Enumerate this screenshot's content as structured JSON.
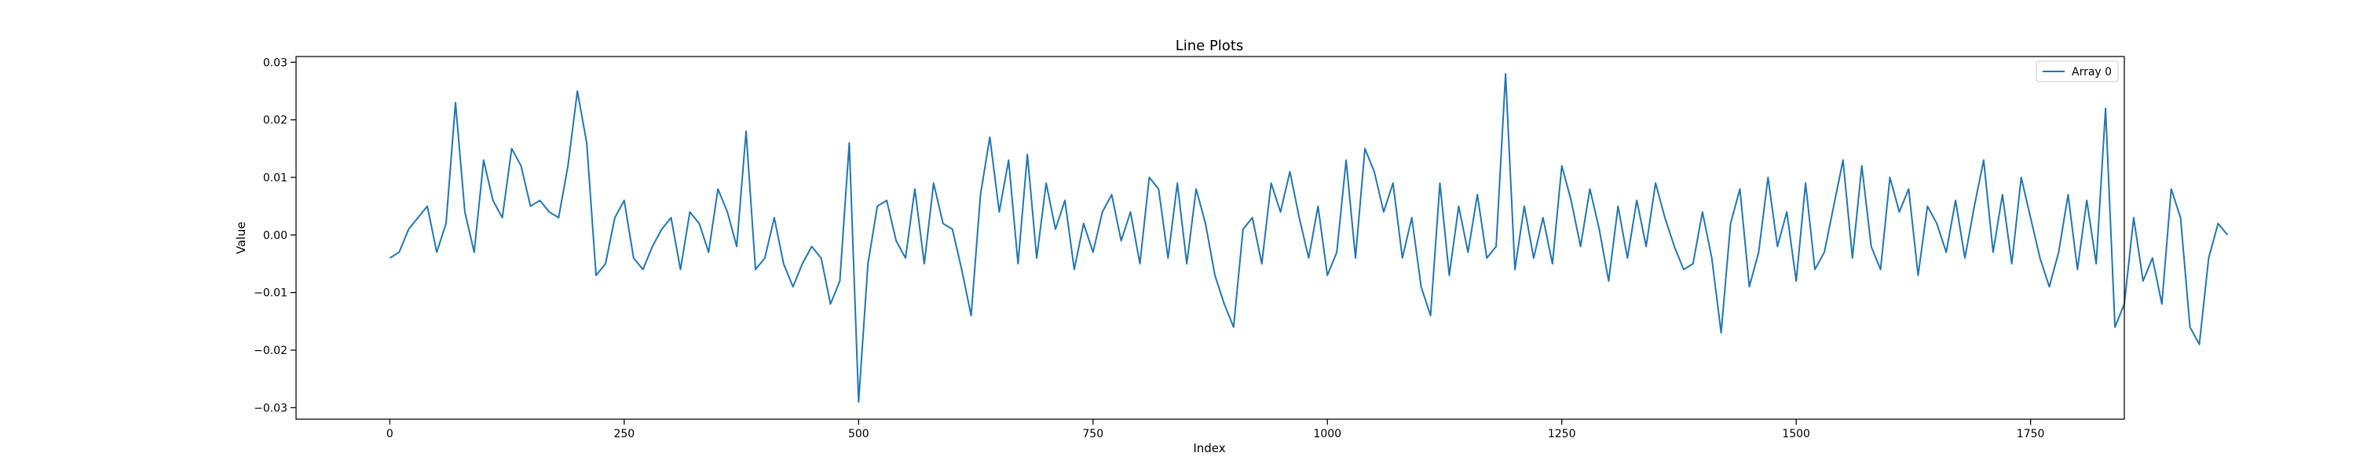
{
  "chart_data": {
    "type": "line",
    "title": "Line Plots",
    "xlabel": "Index",
    "ylabel": "Value",
    "xlim": [
      -100,
      1850
    ],
    "ylim": [
      -0.032,
      0.031
    ],
    "xticks": [
      0,
      250,
      500,
      750,
      1000,
      1250,
      1500,
      1750
    ],
    "xtick_labels": [
      "0",
      "250",
      "500",
      "750",
      "1000",
      "1250",
      "1500",
      "1750"
    ],
    "yticks": [
      -0.03,
      -0.02,
      -0.01,
      0.0,
      0.01,
      0.02,
      0.03
    ],
    "ytick_labels": [
      "−0.03",
      "−0.02",
      "−0.01",
      "0.00",
      "0.01",
      "0.02",
      "0.03"
    ],
    "grid": false,
    "legend_position": "top-right",
    "series": [
      {
        "name": "Array 0",
        "color": "#1f77b4",
        "x_start": 0,
        "x_step": 10,
        "values": [
          -0.004,
          -0.003,
          0.001,
          0.003,
          0.005,
          -0.003,
          0.002,
          0.023,
          0.004,
          -0.003,
          0.013,
          0.006,
          0.003,
          0.015,
          0.012,
          0.005,
          0.006,
          0.004,
          0.003,
          0.012,
          0.025,
          0.016,
          -0.007,
          -0.005,
          0.003,
          0.006,
          -0.004,
          -0.006,
          -0.002,
          0.001,
          0.003,
          -0.006,
          0.004,
          0.002,
          -0.003,
          0.008,
          0.004,
          -0.002,
          0.018,
          -0.006,
          -0.004,
          0.003,
          -0.005,
          -0.009,
          -0.005,
          -0.002,
          -0.004,
          -0.012,
          -0.008,
          0.016,
          -0.029,
          -0.005,
          0.005,
          0.006,
          -0.001,
          -0.004,
          0.008,
          -0.005,
          0.009,
          0.002,
          0.001,
          -0.006,
          -0.014,
          0.007,
          0.017,
          0.004,
          0.013,
          -0.005,
          0.014,
          -0.004,
          0.009,
          0.001,
          0.006,
          -0.006,
          0.002,
          -0.003,
          0.004,
          0.007,
          -0.001,
          0.004,
          -0.005,
          0.01,
          0.008,
          -0.004,
          0.009,
          -0.005,
          0.008,
          0.002,
          -0.007,
          -0.012,
          -0.016,
          0.001,
          0.003,
          -0.005,
          0.009,
          0.004,
          0.011,
          0.003,
          -0.004,
          0.005,
          -0.007,
          -0.003,
          0.013,
          -0.004,
          0.015,
          0.011,
          0.004,
          0.009,
          -0.004,
          0.003,
          -0.009,
          -0.014,
          0.009,
          -0.007,
          0.005,
          -0.003,
          0.007,
          -0.004,
          -0.002,
          0.028,
          -0.006,
          0.005,
          -0.004,
          0.003,
          -0.005,
          0.012,
          0.006,
          -0.002,
          0.008,
          0.001,
          -0.008,
          0.005,
          -0.004,
          0.006,
          -0.002,
          0.009,
          0.003,
          -0.002,
          -0.006,
          -0.005,
          0.004,
          -0.004,
          -0.017,
          0.002,
          0.008,
          -0.009,
          -0.003,
          0.01,
          -0.002,
          0.004,
          -0.008,
          0.009,
          -0.006,
          -0.003,
          0.005,
          0.013,
          -0.004,
          0.012,
          -0.002,
          -0.006,
          0.01,
          0.004,
          0.008,
          -0.007,
          0.005,
          0.002,
          -0.003,
          0.006,
          -0.004,
          0.005,
          0.013,
          -0.003,
          0.007,
          -0.005,
          0.01,
          0.003,
          -0.004,
          -0.009,
          -0.003,
          0.007,
          -0.006,
          0.006,
          -0.005,
          0.022,
          -0.016,
          -0.012,
          0.003,
          -0.008,
          -0.004,
          -0.012,
          0.008,
          0.003,
          -0.016,
          -0.019,
          -0.004,
          0.002,
          0.0
        ]
      }
    ]
  }
}
